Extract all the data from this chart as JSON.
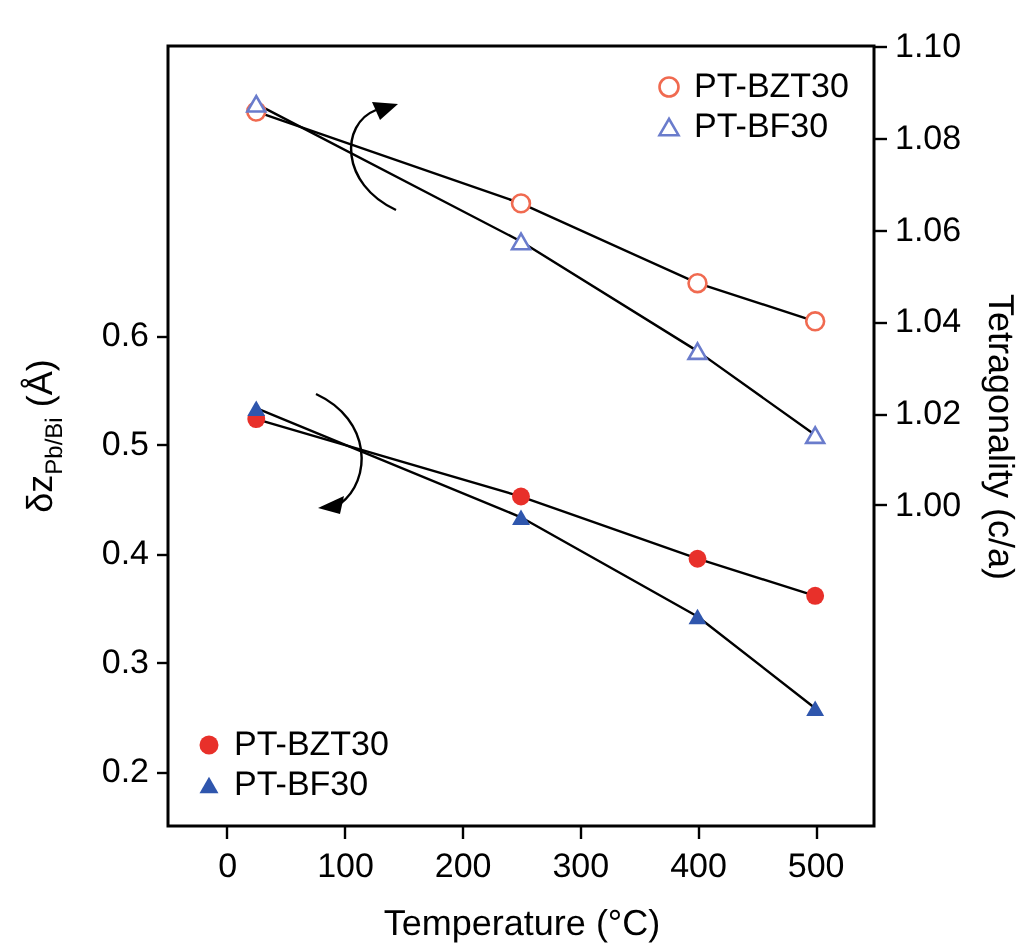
{
  "chart_data": {
    "type": "line",
    "xlabel": "Temperature (°C)",
    "ylabel": "δz$_{Pb/Bi}$ (Å)",
    "y2label": "Tetragonality (c/a)",
    "x": [
      25,
      250,
      400,
      500
    ],
    "xlim": [
      -50,
      550
    ],
    "xticks": [
      0,
      100,
      200,
      300,
      400,
      500
    ],
    "ylim": [
      0.15,
      0.865
    ],
    "yticks": [
      0.2,
      0.3,
      0.4,
      0.5,
      0.6
    ],
    "y2lim": [
      0.93,
      1.1
    ],
    "y2ticks": [
      {
        "value": 1,
        "label": "1.00"
      },
      1.02,
      1.04,
      1.06,
      1.08,
      {
        "value": 1.1,
        "label": "1.10"
      }
    ],
    "legend": "top right",
    "grid": false,
    "series": [
      {
        "name": "PT-BZT30",
        "color": "#f06a50",
        "marker": "circle",
        "axis": "y2",
        "values": [
          1.0857,
          1.0657,
          1.0483,
          1.04
        ]
      },
      {
        "name": "PT-BF30",
        "color": "#6a7ccc",
        "marker": "triangle",
        "axis": "y2",
        "values": [
          1.0874,
          1.0574,
          1.0335,
          1.0152
        ]
      },
      {
        "name": "PT-BZT30",
        "color": "#e8302a",
        "marker": "circle",
        "axis": "y",
        "values": [
          0.523,
          0.452,
          0.395,
          0.361
        ]
      },
      {
        "name": "PT-BF30",
        "color": "#2f56ad",
        "marker": "triangle",
        "axis": "y",
        "values": [
          0.533,
          0.433,
          0.342,
          0.258
        ]
      }
    ]
  }
}
